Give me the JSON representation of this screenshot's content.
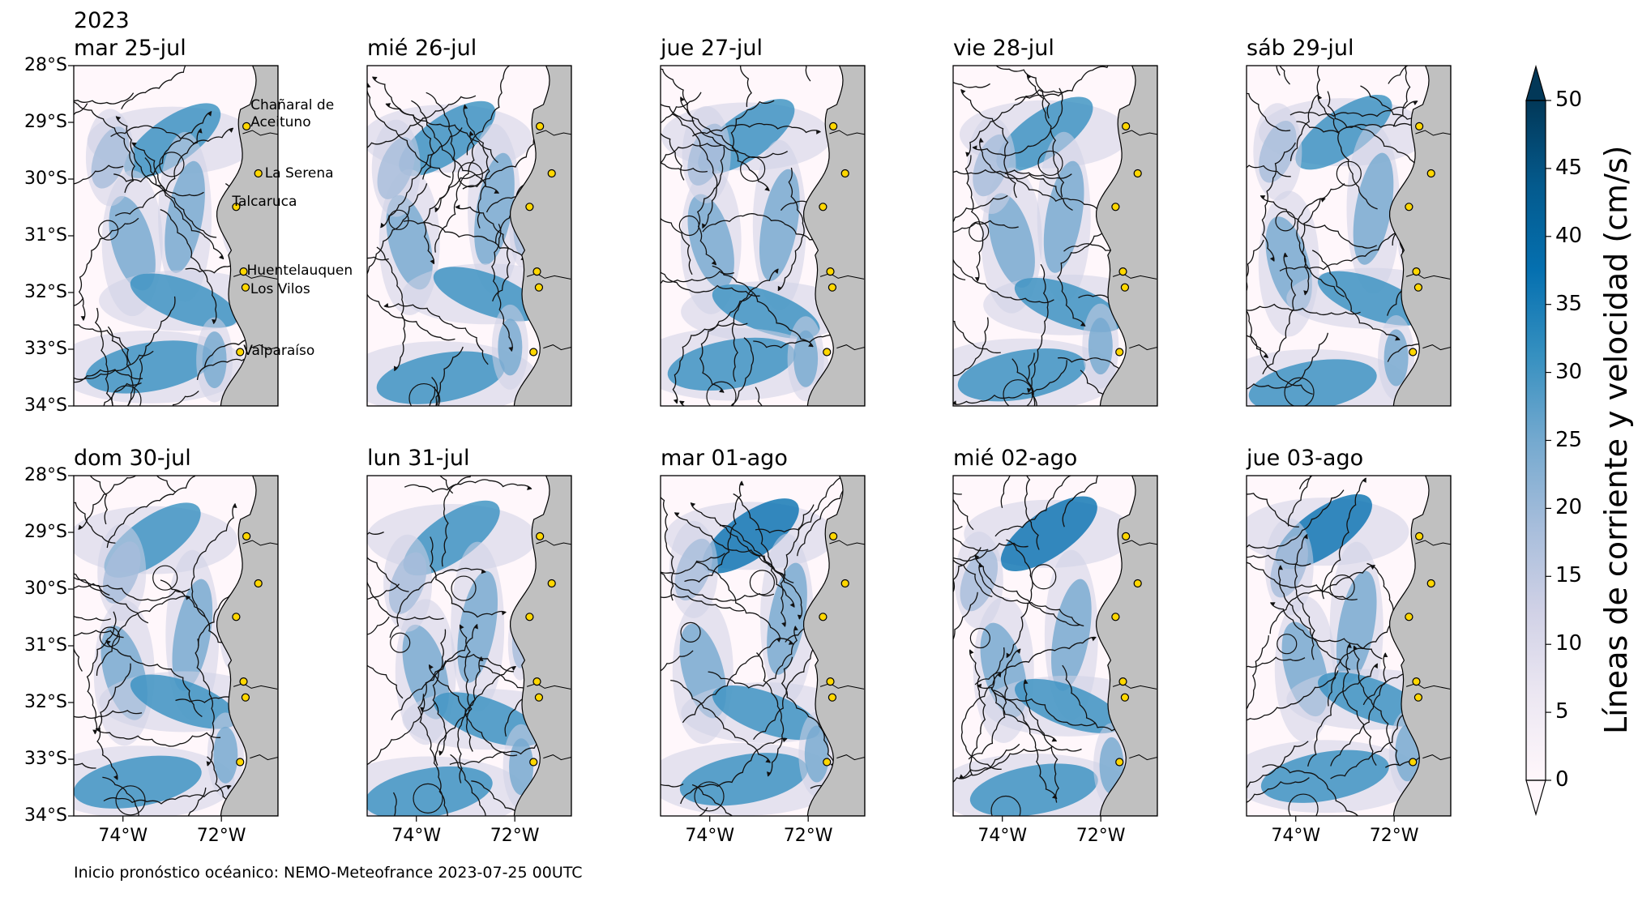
{
  "year": "2023",
  "panels": [
    {
      "title": "mar 25-jul"
    },
    {
      "title": "mié 26-jul"
    },
    {
      "title": "jue 27-jul"
    },
    {
      "title": "vie 28-jul"
    },
    {
      "title": "sáb 29-jul"
    },
    {
      "title": "dom 30-jul"
    },
    {
      "title": "lun 31-jul"
    },
    {
      "title": "mar 01-ago"
    },
    {
      "title": "mié 02-ago"
    },
    {
      "title": "jue 03-ago"
    }
  ],
  "lat_ticks": [
    "28°S",
    "29°S",
    "30°S",
    "31°S",
    "32°S",
    "33°S",
    "34°S"
  ],
  "lon_ticks": [
    "74°W",
    "72°W"
  ],
  "places": [
    {
      "name": "Chañaral de\nAceituno",
      "lat": -29.07,
      "lon": -71.49
    },
    {
      "name": "La Serena",
      "lat": -29.9,
      "lon": -71.25
    },
    {
      "name": "Talcaruca",
      "lat": -30.49,
      "lon": -71.7
    },
    {
      "name": "Huentelauquen",
      "lat": -31.63,
      "lon": -71.55
    },
    {
      "name": "Los Vilos",
      "lat": -31.91,
      "lon": -71.51
    },
    {
      "name": "Valparaíso",
      "lat": -33.05,
      "lon": -71.62
    }
  ],
  "colorbar": {
    "label": "Líneas de corriente y velocidad (cm/s)",
    "ticks": [
      "0",
      "5",
      "10",
      "15",
      "20",
      "25",
      "30",
      "35",
      "40",
      "45",
      "50"
    ],
    "colors": [
      "#fff7fb",
      "#ece7f2",
      "#d0d1e6",
      "#a6bddb",
      "#74a9cf",
      "#3690c0",
      "#0570b0",
      "#045a8d",
      "#023858"
    ]
  },
  "map_colors": {
    "land": "#c0c0c0",
    "place_marker": "#ffd700"
  },
  "footer": "Inicio pronóstico océanico: NEMO-Meteofrance 2023-07-25 00UTC"
}
